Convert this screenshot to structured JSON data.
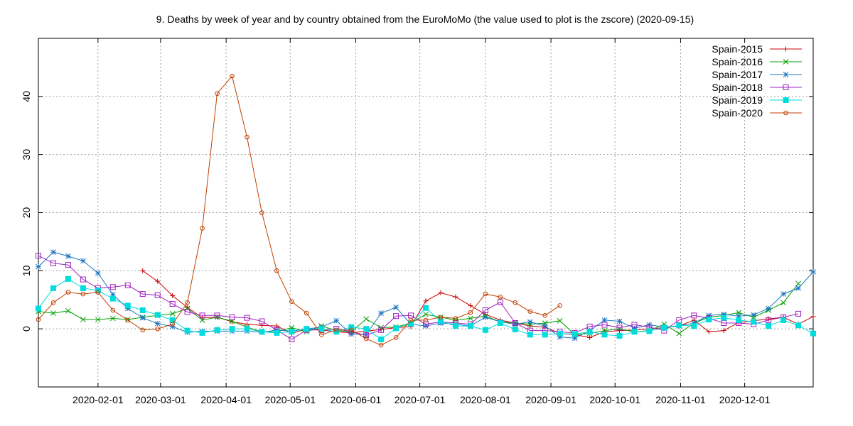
{
  "chart_data": {
    "type": "line",
    "title": "9. Deaths by week of year and by country obtained from the EuroMoMo (the value used to plot is the zscore) (2020-09-15)",
    "xlabel": "",
    "ylabel": "",
    "ylim": [
      -10,
      50
    ],
    "yticks": [
      0,
      10,
      20,
      30,
      40
    ],
    "x_ticks": [
      {
        "label": "2020-02-01",
        "x": 5
      },
      {
        "label": "2020-03-01",
        "x": 9.2
      },
      {
        "label": "2020-04-01",
        "x": 13.6
      },
      {
        "label": "2020-05-01",
        "x": 17.9
      },
      {
        "label": "2020-06-01",
        "x": 22.3
      },
      {
        "label": "2020-07-01",
        "x": 26.6
      },
      {
        "label": "2020-08-01",
        "x": 31
      },
      {
        "label": "2020-09-01",
        "x": 35.4
      },
      {
        "label": "2020-10-01",
        "x": 39.7
      },
      {
        "label": "2020-11-01",
        "x": 44.1
      },
      {
        "label": "2020-12-01",
        "x": 48.4
      }
    ],
    "xlim": [
      1,
      53
    ],
    "grid": true,
    "legend_position": "top-right",
    "series": [
      {
        "name": "Spain-2015",
        "color": "#cc0000",
        "marker": "plus",
        "points": [
          [
            8,
            10
          ],
          [
            9,
            8.2
          ],
          [
            10,
            5.7
          ],
          [
            11,
            3.7
          ],
          [
            12,
            1.9
          ],
          [
            13,
            2
          ],
          [
            14,
            1.2
          ],
          [
            15,
            0.8
          ],
          [
            16,
            0.6
          ],
          [
            17,
            0.5
          ],
          [
            18,
            -0.8
          ],
          [
            19,
            0
          ],
          [
            20,
            -0.2
          ],
          [
            21,
            -0.5
          ],
          [
            22,
            -0.7
          ],
          [
            23,
            -0.4
          ],
          [
            24,
            -0.1
          ],
          [
            25,
            0.2
          ],
          [
            26,
            0.4
          ],
          [
            27,
            4.8
          ],
          [
            28,
            6.2
          ],
          [
            29,
            5.5
          ],
          [
            30,
            4
          ],
          [
            31,
            2.5
          ],
          [
            32,
            1.5
          ],
          [
            33,
            1
          ],
          [
            34,
            0.5
          ],
          [
            35,
            0.3
          ],
          [
            36,
            -0.8
          ],
          [
            37,
            -1
          ],
          [
            38,
            -1.5
          ],
          [
            39,
            -0.5
          ],
          [
            40,
            -0.3
          ],
          [
            41,
            -0.2
          ],
          [
            42,
            0
          ],
          [
            43,
            0.2
          ],
          [
            44,
            0.5
          ],
          [
            45,
            1.5
          ],
          [
            46,
            -0.5
          ],
          [
            47,
            -0.3
          ],
          [
            48,
            1.1
          ],
          [
            49,
            1.4
          ],
          [
            50,
            1.7
          ],
          [
            51,
            2.0
          ],
          [
            52,
            0.8
          ],
          [
            53,
            2.1
          ]
        ]
      },
      {
        "name": "Spain-2016",
        "color": "#00a000",
        "marker": "x",
        "points": [
          [
            1,
            3
          ],
          [
            2,
            2.7
          ],
          [
            3,
            3.1
          ],
          [
            4,
            1.6
          ],
          [
            5,
            1.6
          ],
          [
            6,
            1.8
          ],
          [
            7,
            1.6
          ],
          [
            8,
            2
          ],
          [
            9,
            2.3
          ],
          [
            10,
            2.6
          ],
          [
            11,
            3.5
          ],
          [
            12,
            1.5
          ],
          [
            13,
            2
          ],
          [
            14,
            1.3
          ],
          [
            15,
            0.3
          ],
          [
            16,
            -0.5
          ],
          [
            17,
            -0.5
          ],
          [
            18,
            0.2
          ],
          [
            19,
            -0.5
          ],
          [
            20,
            0.5
          ],
          [
            21,
            -0.3
          ],
          [
            22,
            -0.5
          ],
          [
            23,
            1.7
          ],
          [
            24,
            0.2
          ],
          [
            25,
            0.3
          ],
          [
            26,
            1
          ],
          [
            27,
            2.5
          ],
          [
            28,
            2
          ],
          [
            29,
            1.5
          ],
          [
            30,
            1.8
          ],
          [
            31,
            2.2
          ],
          [
            32,
            1.2
          ],
          [
            33,
            1
          ],
          [
            34,
            0.8
          ],
          [
            35,
            1
          ],
          [
            36,
            1.4
          ],
          [
            37,
            -1
          ],
          [
            38,
            -0.8
          ],
          [
            39,
            -0.3
          ],
          [
            40,
            0
          ],
          [
            41,
            -0.5
          ],
          [
            42,
            -0.3
          ],
          [
            43,
            0.8
          ],
          [
            44,
            -0.8
          ],
          [
            45,
            1
          ],
          [
            46,
            2
          ],
          [
            47,
            2.3
          ],
          [
            48,
            2.8
          ],
          [
            49,
            2
          ],
          [
            50,
            3.2
          ],
          [
            51,
            4.5
          ],
          [
            52,
            7.8
          ]
        ]
      },
      {
        "name": "Spain-2017",
        "color": "#1c77c3",
        "marker": "star",
        "points": [
          [
            1,
            10.7
          ],
          [
            2,
            13.2
          ],
          [
            3,
            12.5
          ],
          [
            4,
            11.7
          ],
          [
            5,
            9.6
          ],
          [
            6,
            5.9
          ],
          [
            7,
            3.5
          ],
          [
            8,
            1.9
          ],
          [
            9,
            0.9
          ],
          [
            10,
            0.4
          ],
          [
            11,
            -0.6
          ],
          [
            12,
            -0.4
          ],
          [
            13,
            -0.4
          ],
          [
            14,
            -0.4
          ],
          [
            15,
            -0.4
          ],
          [
            16,
            -0.6
          ],
          [
            17,
            -0.2
          ],
          [
            18,
            -0.4
          ],
          [
            19,
            0
          ],
          [
            20,
            0.3
          ],
          [
            21,
            1.4
          ],
          [
            22,
            -0.9
          ],
          [
            23,
            -1
          ],
          [
            24,
            2.7
          ],
          [
            25,
            3.7
          ],
          [
            26,
            0.8
          ],
          [
            27,
            0.5
          ],
          [
            28,
            1
          ],
          [
            29,
            0.8
          ],
          [
            30,
            0.5
          ],
          [
            31,
            2
          ],
          [
            32,
            1.2
          ],
          [
            33,
            0.8
          ],
          [
            34,
            1.2
          ],
          [
            35,
            0.5
          ],
          [
            36,
            -1.4
          ],
          [
            37,
            -1.6
          ],
          [
            38,
            -0.3
          ],
          [
            39,
            1.5
          ],
          [
            40,
            1.3
          ],
          [
            41,
            0.1
          ],
          [
            42,
            0.7
          ],
          [
            43,
            0.3
          ],
          [
            44,
            0.5
          ],
          [
            45,
            1
          ],
          [
            46,
            2.3
          ],
          [
            47,
            2.5
          ],
          [
            48,
            2.2
          ],
          [
            49,
            2.4
          ],
          [
            50,
            3.5
          ],
          [
            51,
            6
          ],
          [
            52,
            7
          ],
          [
            53,
            9.8
          ]
        ]
      },
      {
        "name": "Spain-2018",
        "color": "#a020c0",
        "marker": "square",
        "points": [
          [
            1,
            12.6
          ],
          [
            2,
            11.3
          ],
          [
            3,
            11
          ],
          [
            4,
            8.5
          ],
          [
            5,
            7
          ],
          [
            6,
            7.2
          ],
          [
            7,
            7.5
          ],
          [
            8,
            6
          ],
          [
            9,
            5.8
          ],
          [
            10,
            4.3
          ],
          [
            11,
            2.9
          ],
          [
            12,
            2.3
          ],
          [
            13,
            2.3
          ],
          [
            14,
            2
          ],
          [
            15,
            1.9
          ],
          [
            16,
            1.3
          ],
          [
            17,
            -0.2
          ],
          [
            18,
            -1.8
          ],
          [
            19,
            -0.2
          ],
          [
            20,
            -0.2
          ],
          [
            21,
            0
          ],
          [
            22,
            -0.5
          ],
          [
            23,
            -1.1
          ],
          [
            24,
            -0.2
          ],
          [
            25,
            2.2
          ],
          [
            26,
            2.3
          ],
          [
            27,
            0.8
          ],
          [
            28,
            1.2
          ],
          [
            29,
            1
          ],
          [
            30,
            0.8
          ],
          [
            31,
            3.2
          ],
          [
            32,
            4.6
          ],
          [
            33,
            1
          ],
          [
            34,
            -0.3
          ],
          [
            35,
            -0.3
          ],
          [
            36,
            -0.5
          ],
          [
            37,
            -0.7
          ],
          [
            38,
            0.4
          ],
          [
            39,
            0.7
          ],
          [
            40,
            0.2
          ],
          [
            41,
            0.7
          ],
          [
            42,
            0.3
          ],
          [
            43,
            -0.3
          ],
          [
            44,
            1.5
          ],
          [
            45,
            2.3
          ],
          [
            46,
            1.8
          ],
          [
            47,
            1
          ],
          [
            48,
            1
          ],
          [
            49,
            0.8
          ],
          [
            50,
            1.5
          ],
          [
            51,
            2
          ],
          [
            52,
            2.6
          ]
        ]
      },
      {
        "name": "Spain-2019",
        "color": "#00dddd",
        "marker": "filled-square",
        "points": [
          [
            1,
            3.5
          ],
          [
            2,
            7
          ],
          [
            3,
            8.6
          ],
          [
            4,
            7
          ],
          [
            5,
            6.6
          ],
          [
            6,
            5.2
          ],
          [
            7,
            4
          ],
          [
            8,
            3.2
          ],
          [
            9,
            2.4
          ],
          [
            10,
            1.5
          ],
          [
            11,
            -0.3
          ],
          [
            12,
            -0.7
          ],
          [
            13,
            -0.2
          ],
          [
            14,
            0
          ],
          [
            15,
            0
          ],
          [
            16,
            -0.5
          ],
          [
            17,
            -0.7
          ],
          [
            18,
            -0.5
          ],
          [
            19,
            0
          ],
          [
            20,
            0
          ],
          [
            21,
            -0.5
          ],
          [
            22,
            0.3
          ],
          [
            23,
            0
          ],
          [
            24,
            -1.8
          ],
          [
            25,
            0.1
          ],
          [
            26,
            0.9
          ],
          [
            27,
            3.6
          ],
          [
            28,
            1.3
          ],
          [
            29,
            0.5
          ],
          [
            30,
            0.5
          ],
          [
            31,
            -0.2
          ],
          [
            32,
            1
          ],
          [
            33,
            -0.1
          ],
          [
            34,
            -1
          ],
          [
            35,
            -1
          ],
          [
            36,
            -0.8
          ],
          [
            37,
            -0.9
          ],
          [
            38,
            -0.5
          ],
          [
            39,
            -1
          ],
          [
            40,
            -1.2
          ],
          [
            41,
            -0.5
          ],
          [
            42,
            -0.4
          ],
          [
            43,
            0.2
          ],
          [
            44,
            0.6
          ],
          [
            45,
            0.5
          ],
          [
            46,
            1.6
          ],
          [
            47,
            1.9
          ],
          [
            48,
            1.5
          ],
          [
            49,
            1.2
          ],
          [
            50,
            0.5
          ],
          [
            51,
            1.5
          ],
          [
            52,
            0.6
          ],
          [
            53,
            -0.8
          ]
        ]
      },
      {
        "name": "Spain-2020",
        "color": "#c04000",
        "marker": "circle",
        "points": [
          [
            1,
            1.6
          ],
          [
            2,
            4.5
          ],
          [
            3,
            6.3
          ],
          [
            4,
            6
          ],
          [
            5,
            6.3
          ],
          [
            6,
            3.2
          ],
          [
            7,
            1.5
          ],
          [
            8,
            -0.2
          ],
          [
            9,
            0
          ],
          [
            10,
            0.8
          ],
          [
            11,
            4.5
          ],
          [
            12,
            17.3
          ],
          [
            13,
            40.5
          ],
          [
            14,
            43.5
          ],
          [
            15,
            33
          ],
          [
            16,
            20
          ],
          [
            17,
            10
          ],
          [
            18,
            4.7
          ],
          [
            19,
            2.7
          ],
          [
            20,
            -1
          ],
          [
            21,
            -0.2
          ],
          [
            22,
            -0.2
          ],
          [
            23,
            -1.7
          ],
          [
            24,
            -2.8
          ],
          [
            25,
            -1.5
          ],
          [
            26,
            1.5
          ],
          [
            27,
            1.5
          ],
          [
            28,
            2
          ],
          [
            29,
            1.8
          ],
          [
            30,
            2.8
          ],
          [
            31,
            6
          ],
          [
            32,
            5.5
          ],
          [
            33,
            4.5
          ],
          [
            34,
            3
          ],
          [
            35,
            2.3
          ],
          [
            36,
            4
          ]
        ]
      }
    ]
  }
}
